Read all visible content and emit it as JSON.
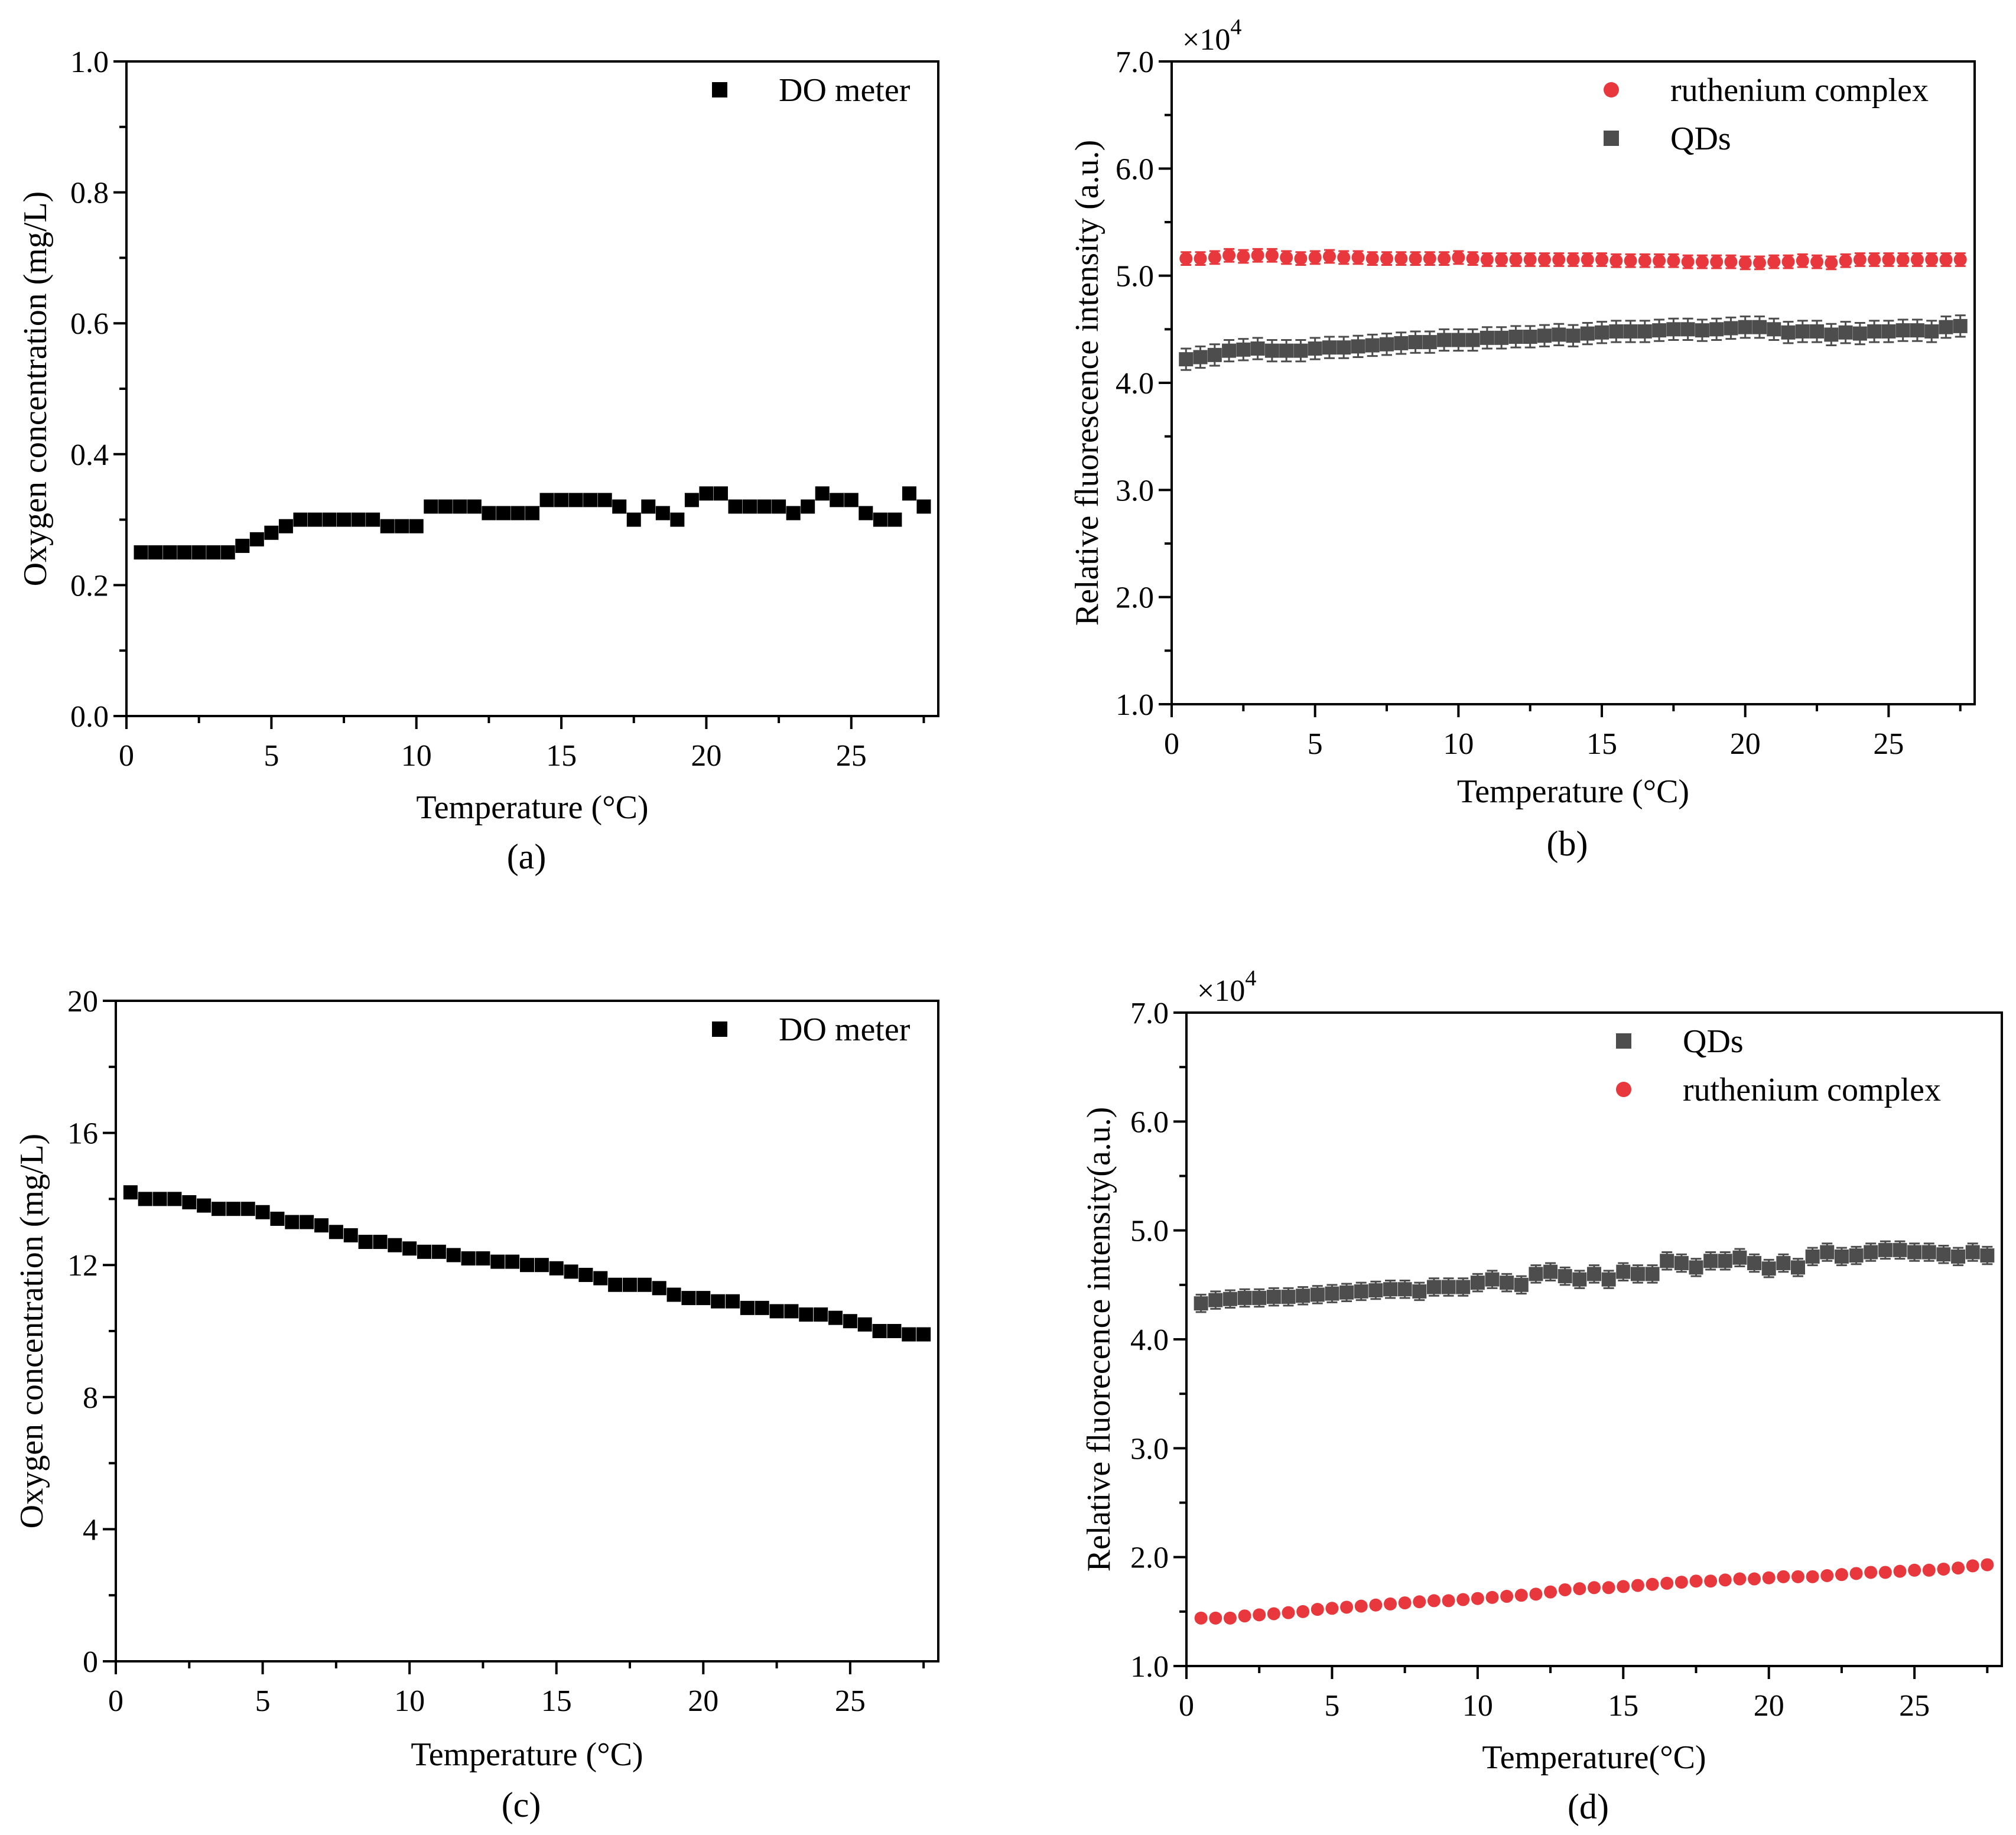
{
  "chart_data": [
    {
      "id": "a",
      "type": "scatter",
      "panel_label": "(a)",
      "xlabel": "Temperature (°C)",
      "ylabel": "Oxygen concentration (mg/L)",
      "xlim": [
        0,
        28
      ],
      "ylim": [
        0.0,
        1.0
      ],
      "xticks": [
        0,
        5,
        10,
        15,
        20,
        25
      ],
      "yticks": [
        0.0,
        0.2,
        0.4,
        0.6,
        0.8,
        1.0
      ],
      "ytick_labels": [
        "0.0",
        "0.2",
        "0.4",
        "0.6",
        "0.8",
        "1.0"
      ],
      "exponent_label": "",
      "legend_position": "top-right",
      "series": [
        {
          "name": "DO meter",
          "marker": "square",
          "color": "#000000",
          "x": [
            0.5,
            1,
            1.5,
            2,
            2.5,
            3,
            3.5,
            4,
            4.5,
            5,
            5.5,
            6,
            6.5,
            7,
            7.5,
            8,
            8.5,
            9,
            9.5,
            10,
            10.5,
            11,
            11.5,
            12,
            12.5,
            13,
            13.5,
            14,
            14.5,
            15,
            15.5,
            16,
            16.5,
            17,
            17.5,
            18,
            18.5,
            19,
            19.5,
            20,
            20.5,
            21,
            21.5,
            22,
            22.5,
            23,
            23.5,
            24,
            24.5,
            25,
            25.5,
            26,
            26.5,
            27,
            27.5
          ],
          "y": [
            0.25,
            0.25,
            0.25,
            0.25,
            0.25,
            0.25,
            0.25,
            0.26,
            0.27,
            0.28,
            0.29,
            0.3,
            0.3,
            0.3,
            0.3,
            0.3,
            0.3,
            0.29,
            0.29,
            0.29,
            0.32,
            0.32,
            0.32,
            0.32,
            0.31,
            0.31,
            0.31,
            0.31,
            0.33,
            0.33,
            0.33,
            0.33,
            0.33,
            0.32,
            0.3,
            0.32,
            0.31,
            0.3,
            0.33,
            0.34,
            0.34,
            0.32,
            0.32,
            0.32,
            0.32,
            0.31,
            0.32,
            0.34,
            0.33,
            0.33,
            0.31,
            0.3,
            0.3,
            0.34,
            0.32
          ]
        }
      ]
    },
    {
      "id": "b",
      "type": "scatter",
      "panel_label": "(b)",
      "xlabel": "Temperature (°C)",
      "ylabel": "Relative fluorescence intensity (a.u.)",
      "xlim": [
        0,
        28
      ],
      "ylim": [
        1.0,
        7.0
      ],
      "xticks": [
        0,
        5,
        10,
        15,
        20,
        25
      ],
      "yticks": [
        1.0,
        2.0,
        3.0,
        4.0,
        5.0,
        6.0,
        7.0
      ],
      "ytick_labels": [
        "1.0",
        "2.0",
        "3.0",
        "4.0",
        "5.0",
        "6.0",
        "7.0"
      ],
      "exponent_label": "×10",
      "exponent_power": "4",
      "legend_position": "top-right",
      "series": [
        {
          "name": "ruthenium complex",
          "marker": "circle",
          "color": "#e8383d",
          "x": [
            0.5,
            1,
            1.5,
            2,
            2.5,
            3,
            3.5,
            4,
            4.5,
            5,
            5.5,
            6,
            6.5,
            7,
            7.5,
            8,
            8.5,
            9,
            9.5,
            10,
            10.5,
            11,
            11.5,
            12,
            12.5,
            13,
            13.5,
            14,
            14.5,
            15,
            15.5,
            16,
            16.5,
            17,
            17.5,
            18,
            18.5,
            19,
            19.5,
            20,
            20.5,
            21,
            21.5,
            22,
            22.5,
            23,
            23.5,
            24,
            24.5,
            25,
            25.5,
            26,
            26.5,
            27,
            27.5
          ],
          "y": [
            5.16,
            5.16,
            5.17,
            5.19,
            5.18,
            5.19,
            5.19,
            5.17,
            5.16,
            5.17,
            5.18,
            5.17,
            5.17,
            5.16,
            5.16,
            5.16,
            5.16,
            5.16,
            5.16,
            5.17,
            5.16,
            5.15,
            5.15,
            5.15,
            5.15,
            5.15,
            5.15,
            5.15,
            5.15,
            5.15,
            5.14,
            5.14,
            5.14,
            5.14,
            5.14,
            5.13,
            5.13,
            5.13,
            5.13,
            5.12,
            5.12,
            5.13,
            5.13,
            5.14,
            5.13,
            5.12,
            5.14,
            5.15,
            5.15,
            5.15,
            5.15,
            5.15,
            5.15,
            5.15,
            5.15
          ],
          "err": 0.06
        },
        {
          "name": "QDs",
          "marker": "square",
          "color": "#4d4d4d",
          "x": [
            0.5,
            1,
            1.5,
            2,
            2.5,
            3,
            3.5,
            4,
            4.5,
            5,
            5.5,
            6,
            6.5,
            7,
            7.5,
            8,
            8.5,
            9,
            9.5,
            10,
            10.5,
            11,
            11.5,
            12,
            12.5,
            13,
            13.5,
            14,
            14.5,
            15,
            15.5,
            16,
            16.5,
            17,
            17.5,
            18,
            18.5,
            19,
            19.5,
            20,
            20.5,
            21,
            21.5,
            22,
            22.5,
            23,
            23.5,
            24,
            24.5,
            25,
            25.5,
            26,
            26.5,
            27,
            27.5
          ],
          "y": [
            4.22,
            4.24,
            4.26,
            4.3,
            4.31,
            4.32,
            4.3,
            4.3,
            4.3,
            4.32,
            4.33,
            4.33,
            4.34,
            4.35,
            4.36,
            4.37,
            4.38,
            4.38,
            4.4,
            4.4,
            4.4,
            4.42,
            4.42,
            4.43,
            4.43,
            4.44,
            4.45,
            4.44,
            4.46,
            4.47,
            4.48,
            4.48,
            4.48,
            4.49,
            4.5,
            4.5,
            4.49,
            4.5,
            4.51,
            4.52,
            4.52,
            4.5,
            4.47,
            4.48,
            4.48,
            4.45,
            4.47,
            4.46,
            4.48,
            4.48,
            4.49,
            4.49,
            4.48,
            4.52,
            4.53
          ],
          "err": 0.1
        }
      ]
    },
    {
      "id": "c",
      "type": "scatter",
      "panel_label": "(c)",
      "xlabel": "Temperature (°C)",
      "ylabel": "Oxygen concentration (mg/L)",
      "xlim": [
        0,
        28
      ],
      "ylim": [
        0,
        20
      ],
      "xticks": [
        0,
        5,
        10,
        15,
        20,
        25
      ],
      "yticks": [
        0,
        4,
        8,
        12,
        16,
        20
      ],
      "ytick_labels": [
        "0",
        "4",
        "8",
        "12",
        "16",
        "20"
      ],
      "exponent_label": "",
      "legend_position": "top-right",
      "series": [
        {
          "name": "DO meter",
          "marker": "square",
          "color": "#000000",
          "x": [
            0.5,
            1,
            1.5,
            2,
            2.5,
            3,
            3.5,
            4,
            4.5,
            5,
            5.5,
            6,
            6.5,
            7,
            7.5,
            8,
            8.5,
            9,
            9.5,
            10,
            10.5,
            11,
            11.5,
            12,
            12.5,
            13,
            13.5,
            14,
            14.5,
            15,
            15.5,
            16,
            16.5,
            17,
            17.5,
            18,
            18.5,
            19,
            19.5,
            20,
            20.5,
            21,
            21.5,
            22,
            22.5,
            23,
            23.5,
            24,
            24.5,
            25,
            25.5,
            26,
            26.5,
            27,
            27.5
          ],
          "y": [
            14.2,
            14.0,
            14.0,
            14.0,
            13.9,
            13.8,
            13.7,
            13.7,
            13.7,
            13.6,
            13.4,
            13.3,
            13.3,
            13.2,
            13.0,
            12.9,
            12.7,
            12.7,
            12.6,
            12.5,
            12.4,
            12.4,
            12.3,
            12.2,
            12.2,
            12.1,
            12.1,
            12.0,
            12.0,
            11.9,
            11.8,
            11.7,
            11.6,
            11.4,
            11.4,
            11.4,
            11.3,
            11.1,
            11.0,
            11.0,
            10.9,
            10.9,
            10.7,
            10.7,
            10.6,
            10.6,
            10.5,
            10.5,
            10.4,
            10.3,
            10.2,
            10.0,
            10.0,
            9.9,
            9.9
          ]
        }
      ]
    },
    {
      "id": "d",
      "type": "scatter",
      "panel_label": "(d)",
      "xlabel": "Temperature(°C)",
      "ylabel": "Relative fluorecence intensity(a.u.)",
      "xlim": [
        0,
        28
      ],
      "ylim": [
        1.0,
        7.0
      ],
      "xticks": [
        0,
        5,
        10,
        15,
        20,
        25
      ],
      "yticks": [
        1.0,
        2.0,
        3.0,
        4.0,
        5.0,
        6.0,
        7.0
      ],
      "ytick_labels": [
        "1.0",
        "2.0",
        "3.0",
        "4.0",
        "5.0",
        "6.0",
        "7.0"
      ],
      "exponent_label": "×10",
      "exponent_power": "4",
      "legend_position": "top-right",
      "series": [
        {
          "name": "QDs",
          "marker": "square",
          "color": "#4d4d4d",
          "x": [
            0.5,
            1,
            1.5,
            2,
            2.5,
            3,
            3.5,
            4,
            4.5,
            5,
            5.5,
            6,
            6.5,
            7,
            7.5,
            8,
            8.5,
            9,
            9.5,
            10,
            10.5,
            11,
            11.5,
            12,
            12.5,
            13,
            13.5,
            14,
            14.5,
            15,
            15.5,
            16,
            16.5,
            17,
            17.5,
            18,
            18.5,
            19,
            19.5,
            20,
            20.5,
            21,
            21.5,
            22,
            22.5,
            23,
            23.5,
            24,
            24.5,
            25,
            25.5,
            26,
            26.5,
            27,
            27.5
          ],
          "y": [
            4.33,
            4.36,
            4.37,
            4.38,
            4.38,
            4.39,
            4.39,
            4.4,
            4.41,
            4.42,
            4.43,
            4.44,
            4.45,
            4.46,
            4.46,
            4.44,
            4.48,
            4.48,
            4.48,
            4.52,
            4.55,
            4.52,
            4.5,
            4.6,
            4.62,
            4.58,
            4.55,
            4.6,
            4.55,
            4.62,
            4.6,
            4.6,
            4.72,
            4.7,
            4.66,
            4.72,
            4.72,
            4.75,
            4.7,
            4.65,
            4.7,
            4.66,
            4.76,
            4.8,
            4.76,
            4.77,
            4.8,
            4.82,
            4.82,
            4.8,
            4.8,
            4.78,
            4.76,
            4.8,
            4.77
          ],
          "err": 0.08
        },
        {
          "name": "ruthenium complex",
          "marker": "circle",
          "color": "#e8383d",
          "x": [
            0.5,
            1,
            1.5,
            2,
            2.5,
            3,
            3.5,
            4,
            4.5,
            5,
            5.5,
            6,
            6.5,
            7,
            7.5,
            8,
            8.5,
            9,
            9.5,
            10,
            10.5,
            11,
            11.5,
            12,
            12.5,
            13,
            13.5,
            14,
            14.5,
            15,
            15.5,
            16,
            16.5,
            17,
            17.5,
            18,
            18.5,
            19,
            19.5,
            20,
            20.5,
            21,
            21.5,
            22,
            22.5,
            23,
            23.5,
            24,
            24.5,
            25,
            25.5,
            26,
            26.5,
            27,
            27.5
          ],
          "y": [
            1.44,
            1.44,
            1.44,
            1.46,
            1.47,
            1.48,
            1.49,
            1.5,
            1.52,
            1.53,
            1.54,
            1.55,
            1.56,
            1.57,
            1.58,
            1.59,
            1.6,
            1.6,
            1.61,
            1.62,
            1.63,
            1.64,
            1.65,
            1.66,
            1.68,
            1.7,
            1.71,
            1.72,
            1.72,
            1.73,
            1.74,
            1.75,
            1.76,
            1.77,
            1.78,
            1.78,
            1.79,
            1.8,
            1.8,
            1.81,
            1.82,
            1.82,
            1.82,
            1.83,
            1.84,
            1.85,
            1.86,
            1.86,
            1.87,
            1.88,
            1.88,
            1.89,
            1.9,
            1.92,
            1.93
          ],
          "err": 0.03
        }
      ]
    }
  ]
}
